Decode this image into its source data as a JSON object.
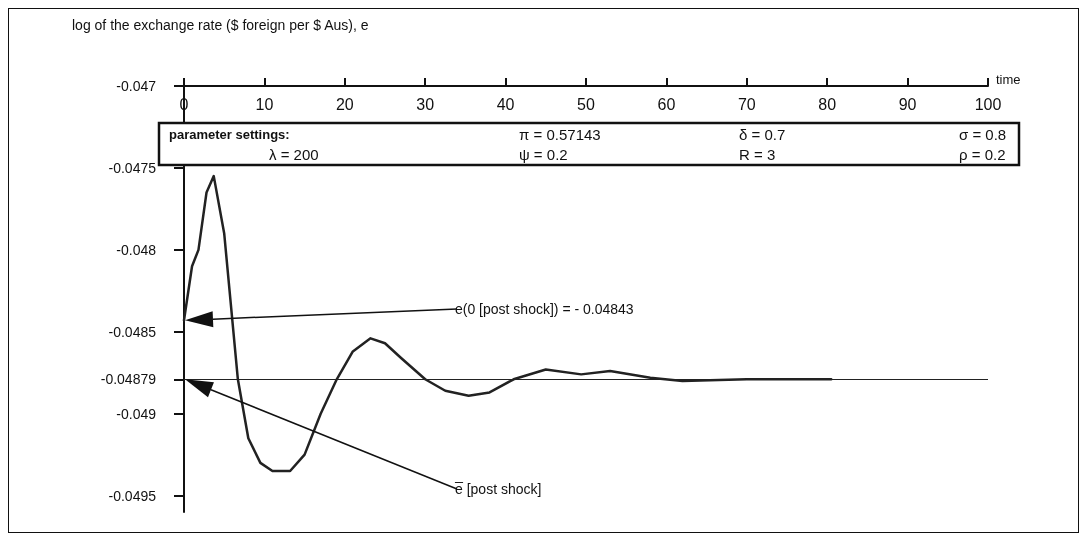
{
  "chart_data": {
    "type": "line",
    "title": "log of the exchange rate ($ foreign per $ Aus), e",
    "xlabel": "time",
    "x": [
      0,
      1,
      1.8,
      2.8,
      3.7,
      5,
      6.7,
      8,
      9.5,
      11,
      13.2,
      15,
      17,
      19,
      21,
      23.2,
      25,
      27,
      30,
      32.5,
      35.4,
      38,
      41,
      45,
      49.4,
      53,
      58,
      62,
      70,
      80.5
    ],
    "series": [
      {
        "color": "#222222",
        "values": [
          -0.04843,
          -0.0481,
          -0.048,
          -0.04765,
          -0.04755,
          -0.0479,
          -0.04879,
          -0.04915,
          -0.0493,
          -0.04935,
          -0.04935,
          -0.04925,
          -0.049,
          -0.04879,
          -0.04862,
          -0.04854,
          -0.04857,
          -0.04866,
          -0.04879,
          -0.04886,
          -0.04889,
          -0.04887,
          -0.04879,
          -0.04873,
          -0.04876,
          -0.04874,
          -0.04878,
          -0.0488,
          -0.04879,
          -0.04879
        ]
      }
    ],
    "xlim": [
      0,
      100
    ],
    "xticks": [
      0,
      10,
      20,
      30,
      40,
      50,
      60,
      70,
      80,
      90,
      100
    ],
    "ylim": [
      -0.0496,
      -0.047
    ],
    "yticks": [
      -0.047,
      -0.0475,
      -0.048,
      -0.0485,
      -0.04879,
      -0.049,
      -0.0495
    ],
    "ref_lines": [
      {
        "axis": "y",
        "value": -0.04879,
        "color": "#222222"
      }
    ],
    "grid": false,
    "marker": "none",
    "line_style": "solid",
    "annotations": [
      "parameter settings:",
      "π = 0.57143",
      "δ = 0.7",
      "σ = 0.8",
      "λ = 200",
      "ψ = 0.2",
      "R = 3",
      "ρ = 0.2",
      "e(0 [post shock]) = - 0.04843",
      "e̅ [post shock]"
    ]
  }
}
